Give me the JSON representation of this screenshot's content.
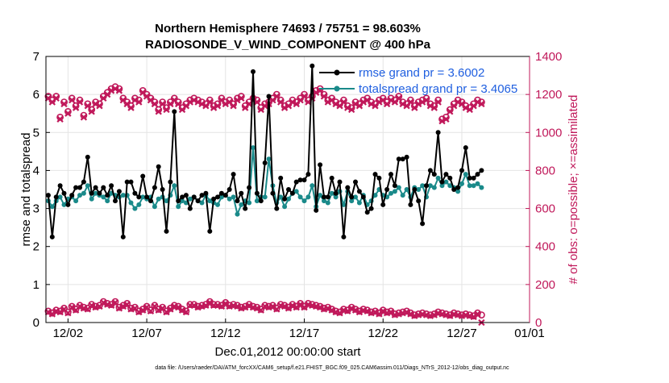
{
  "chart_data": {
    "type": "line",
    "title": "Northern Hemisphere 74693 / 75751 = 98.603%",
    "subtitle": "RADIOSONDE_V_WIND_COMPONENT @ 400 hPa",
    "xlabel": "Dec.01,2012 00:00:00 start",
    "ylabel": "rmse and totalspread",
    "ylabel_right": "# of obs: o=possible; ×=assimilated",
    "footnote": "data file: /Users/raeder/DAI/ATM_forcXX/CAM6_setup/f.e21.FHIST_BGC.f09_025.CAM6assim.011/Diags_NTrS_2012-12/obs_diag_output.nc",
    "legend": [
      "rmse grand pr = 3.6002",
      "totalspread grand pr = 3.4065"
    ],
    "xlim": [
      0.6,
      31.3
    ],
    "ylim": [
      0,
      7
    ],
    "ylim_right": [
      0,
      1400
    ],
    "yticks": [
      0,
      1,
      2,
      3,
      4,
      5,
      6,
      7
    ],
    "yticks_right": [
      0,
      200,
      400,
      600,
      800,
      1000,
      1200,
      1400
    ],
    "xticks": [
      {
        "day": 2,
        "label": "12/02"
      },
      {
        "day": 7,
        "label": "12/07"
      },
      {
        "day": 12,
        "label": "12/12"
      },
      {
        "day": 17,
        "label": "12/17"
      },
      {
        "day": 22,
        "label": "12/22"
      },
      {
        "day": 27,
        "label": "12/27"
      },
      {
        "day": 32,
        "label": "01/01"
      }
    ],
    "x_start_day": 0.75,
    "x_step_days": 0.25,
    "grid": true,
    "colors": {
      "rmse": "#000000",
      "totalspread": "#1a8a8a",
      "obs": "#c0185a",
      "legend_text": "#1f5fe0"
    },
    "series": [
      {
        "name": "rmse",
        "values": [
          3.35,
          2.25,
          3.3,
          3.6,
          3.4,
          3.1,
          3.35,
          3.55,
          3.55,
          3.7,
          4.35,
          3.4,
          3.55,
          3.4,
          3.55,
          3.35,
          3.6,
          3.2,
          3.45,
          2.25,
          3.7,
          3.7,
          3.4,
          3.3,
          3.85,
          3.3,
          3.2,
          3.55,
          4.1,
          3.5,
          2.4,
          3.7,
          5.55,
          3.2,
          3.3,
          3.35,
          3.0,
          3.3,
          3.2,
          3.35,
          3.4,
          2.4,
          3.25,
          3.3,
          3.4,
          3.35,
          3.5,
          3.9,
          3.2,
          3.4,
          3.0,
          3.55,
          6.6,
          3.4,
          3.2,
          4.2,
          5.95,
          3.4,
          3.0,
          3.8,
          3.25,
          3.5,
          3.4,
          3.7,
          3.75,
          3.75,
          3.9,
          6.75,
          2.95,
          4.15,
          3.3,
          3.3,
          3.8,
          3.4,
          3.7,
          2.25,
          3.55,
          3.3,
          3.7,
          3.45,
          3.3,
          2.9,
          3.0,
          3.9,
          3.8,
          3.1,
          3.5,
          3.9,
          3.6,
          4.3,
          4.3,
          4.35,
          3.1,
          3.5,
          3.2,
          2.6,
          3.6,
          4.0,
          3.9,
          5.0,
          3.7,
          3.9,
          3.8,
          3.5,
          3.55,
          4.0,
          4.6,
          3.8,
          3.8,
          3.9,
          4.0
        ]
      },
      {
        "name": "totalspread",
        "values": [
          3.2,
          3.05,
          3.2,
          3.3,
          3.1,
          3.25,
          3.3,
          3.2,
          3.35,
          3.4,
          3.6,
          3.25,
          3.4,
          3.35,
          3.3,
          3.2,
          3.4,
          3.35,
          3.3,
          3.35,
          3.35,
          3.15,
          3.0,
          3.1,
          3.3,
          3.25,
          3.3,
          3.05,
          3.25,
          3.3,
          3.2,
          3.35,
          3.6,
          3.05,
          3.2,
          3.15,
          3.25,
          3.3,
          3.2,
          3.15,
          3.35,
          3.2,
          3.15,
          3.1,
          3.3,
          3.35,
          3.25,
          3.3,
          2.85,
          3.1,
          3.2,
          3.15,
          4.6,
          3.2,
          3.3,
          3.3,
          4.3,
          3.6,
          3.15,
          3.3,
          3.05,
          3.25,
          3.4,
          3.45,
          3.3,
          3.2,
          3.3,
          3.6,
          3.05,
          3.35,
          3.2,
          3.15,
          3.4,
          3.3,
          3.45,
          3.1,
          3.45,
          3.2,
          3.3,
          3.15,
          3.35,
          3.1,
          3.2,
          3.35,
          3.5,
          3.35,
          3.3,
          3.4,
          3.45,
          3.55,
          3.35,
          3.5,
          3.3,
          3.55,
          3.5,
          3.6,
          3.3,
          3.6,
          3.55,
          3.8,
          3.6,
          3.7,
          3.6,
          3.55,
          3.45,
          3.65,
          3.9,
          3.6,
          3.6,
          3.65,
          3.55
        ]
      },
      {
        "name": "obs_possible",
        "values": [
          1190,
          1170,
          1190,
          1080,
          1160,
          1110,
          1180,
          1140,
          1170,
          1090,
          1150,
          1120,
          1160,
          1150,
          1190,
          1210,
          1230,
          1240,
          1230,
          1180,
          1160,
          1140,
          1180,
          1170,
          1220,
          1200,
          1180,
          1160,
          1120,
          1160,
          1130,
          1160,
          1180,
          1160,
          1130,
          1150,
          1170,
          1180,
          1170,
          1160,
          1150,
          1170,
          1140,
          1150,
          1180,
          1160,
          1170,
          1150,
          1180,
          1190,
          1140,
          1160,
          1180,
          1170,
          1130,
          1150,
          1160,
          1180,
          1200,
          1170,
          1140,
          1150,
          1170,
          1160,
          1180,
          1200,
          1170,
          1190,
          1220,
          1230,
          1200,
          1170,
          1180,
          1160,
          1150,
          1170,
          1140,
          1130,
          1160,
          1150,
          1170,
          1180,
          1160,
          1150,
          1170,
          1180,
          1160,
          1180,
          1170,
          1190,
          1160,
          1150,
          1170,
          1140,
          1160,
          1170,
          1180,
          1150,
          1140,
          1170,
          1070,
          1080,
          1120,
          1150,
          1170,
          1160,
          1140,
          1130,
          1150,
          1170,
          1160
        ]
      },
      {
        "name": "obs_assimilated",
        "values": [
          1180,
          1160,
          1180,
          1070,
          1150,
          1100,
          1170,
          1130,
          1160,
          1080,
          1140,
          1110,
          1150,
          1140,
          1180,
          1200,
          1220,
          1230,
          1220,
          1170,
          1150,
          1130,
          1170,
          1160,
          1210,
          1190,
          1170,
          1150,
          1110,
          1150,
          1120,
          1150,
          1170,
          1150,
          1120,
          1140,
          1160,
          1170,
          1160,
          1150,
          1140,
          1160,
          1130,
          1140,
          1170,
          1150,
          1160,
          1140,
          1170,
          1180,
          1130,
          1150,
          1170,
          1160,
          1120,
          1140,
          1150,
          1170,
          1190,
          1160,
          1130,
          1140,
          1160,
          1150,
          1170,
          1190,
          1160,
          1180,
          1210,
          1220,
          1190,
          1160,
          1170,
          1150,
          1140,
          1160,
          1130,
          1120,
          1150,
          1140,
          1160,
          1170,
          1150,
          1140,
          1160,
          1170,
          1150,
          1170,
          1160,
          1180,
          1150,
          1140,
          1160,
          1130,
          1150,
          1160,
          1170,
          1140,
          1130,
          1160,
          1060,
          1070,
          1110,
          1140,
          1160,
          1150,
          1130,
          1120,
          1140,
          1160,
          1150
        ]
      },
      {
        "name": "obs_possible_low",
        "values": [
          60,
          50,
          65,
          60,
          75,
          55,
          85,
          70,
          90,
          80,
          75,
          95,
          85,
          90,
          110,
          100,
          95,
          110,
          80,
          90,
          100,
          75,
          80,
          60,
          70,
          85,
          65,
          90,
          70,
          80,
          60,
          75,
          90,
          85,
          70,
          60,
          95,
          95,
          85,
          90,
          95,
          110,
          95,
          95,
          90,
          105,
          90,
          95,
          90,
          80,
          85,
          95,
          85,
          80,
          70,
          90,
          85,
          90,
          75,
          95,
          90,
          80,
          95,
          85,
          100,
          85,
          100,
          95,
          90,
          85,
          75,
          80,
          70,
          60,
          55,
          70,
          65,
          80,
          70,
          60,
          70,
          65,
          55,
          60,
          50,
          65,
          55,
          60,
          45,
          50,
          55,
          60,
          50,
          40,
          45,
          50,
          45,
          40,
          45,
          55,
          50,
          45,
          40,
          50,
          45,
          40,
          45,
          40,
          35,
          50,
          40
        ]
      },
      {
        "name": "obs_assimilated_low",
        "values": [
          55,
          45,
          60,
          55,
          70,
          50,
          80,
          65,
          85,
          75,
          70,
          90,
          80,
          85,
          105,
          95,
          90,
          105,
          75,
          85,
          95,
          70,
          75,
          55,
          65,
          80,
          60,
          85,
          65,
          75,
          55,
          70,
          85,
          80,
          65,
          55,
          90,
          90,
          80,
          85,
          90,
          105,
          90,
          90,
          85,
          100,
          85,
          90,
          85,
          75,
          80,
          90,
          80,
          75,
          65,
          85,
          80,
          85,
          70,
          90,
          85,
          75,
          90,
          80,
          95,
          80,
          95,
          90,
          85,
          80,
          70,
          75,
          65,
          55,
          50,
          65,
          60,
          75,
          65,
          55,
          65,
          60,
          50,
          55,
          45,
          60,
          50,
          55,
          40,
          45,
          50,
          55,
          45,
          35,
          40,
          45,
          40,
          35,
          40,
          50,
          45,
          40,
          35,
          45,
          40,
          35,
          40,
          35,
          30,
          45,
          0
        ]
      }
    ]
  }
}
